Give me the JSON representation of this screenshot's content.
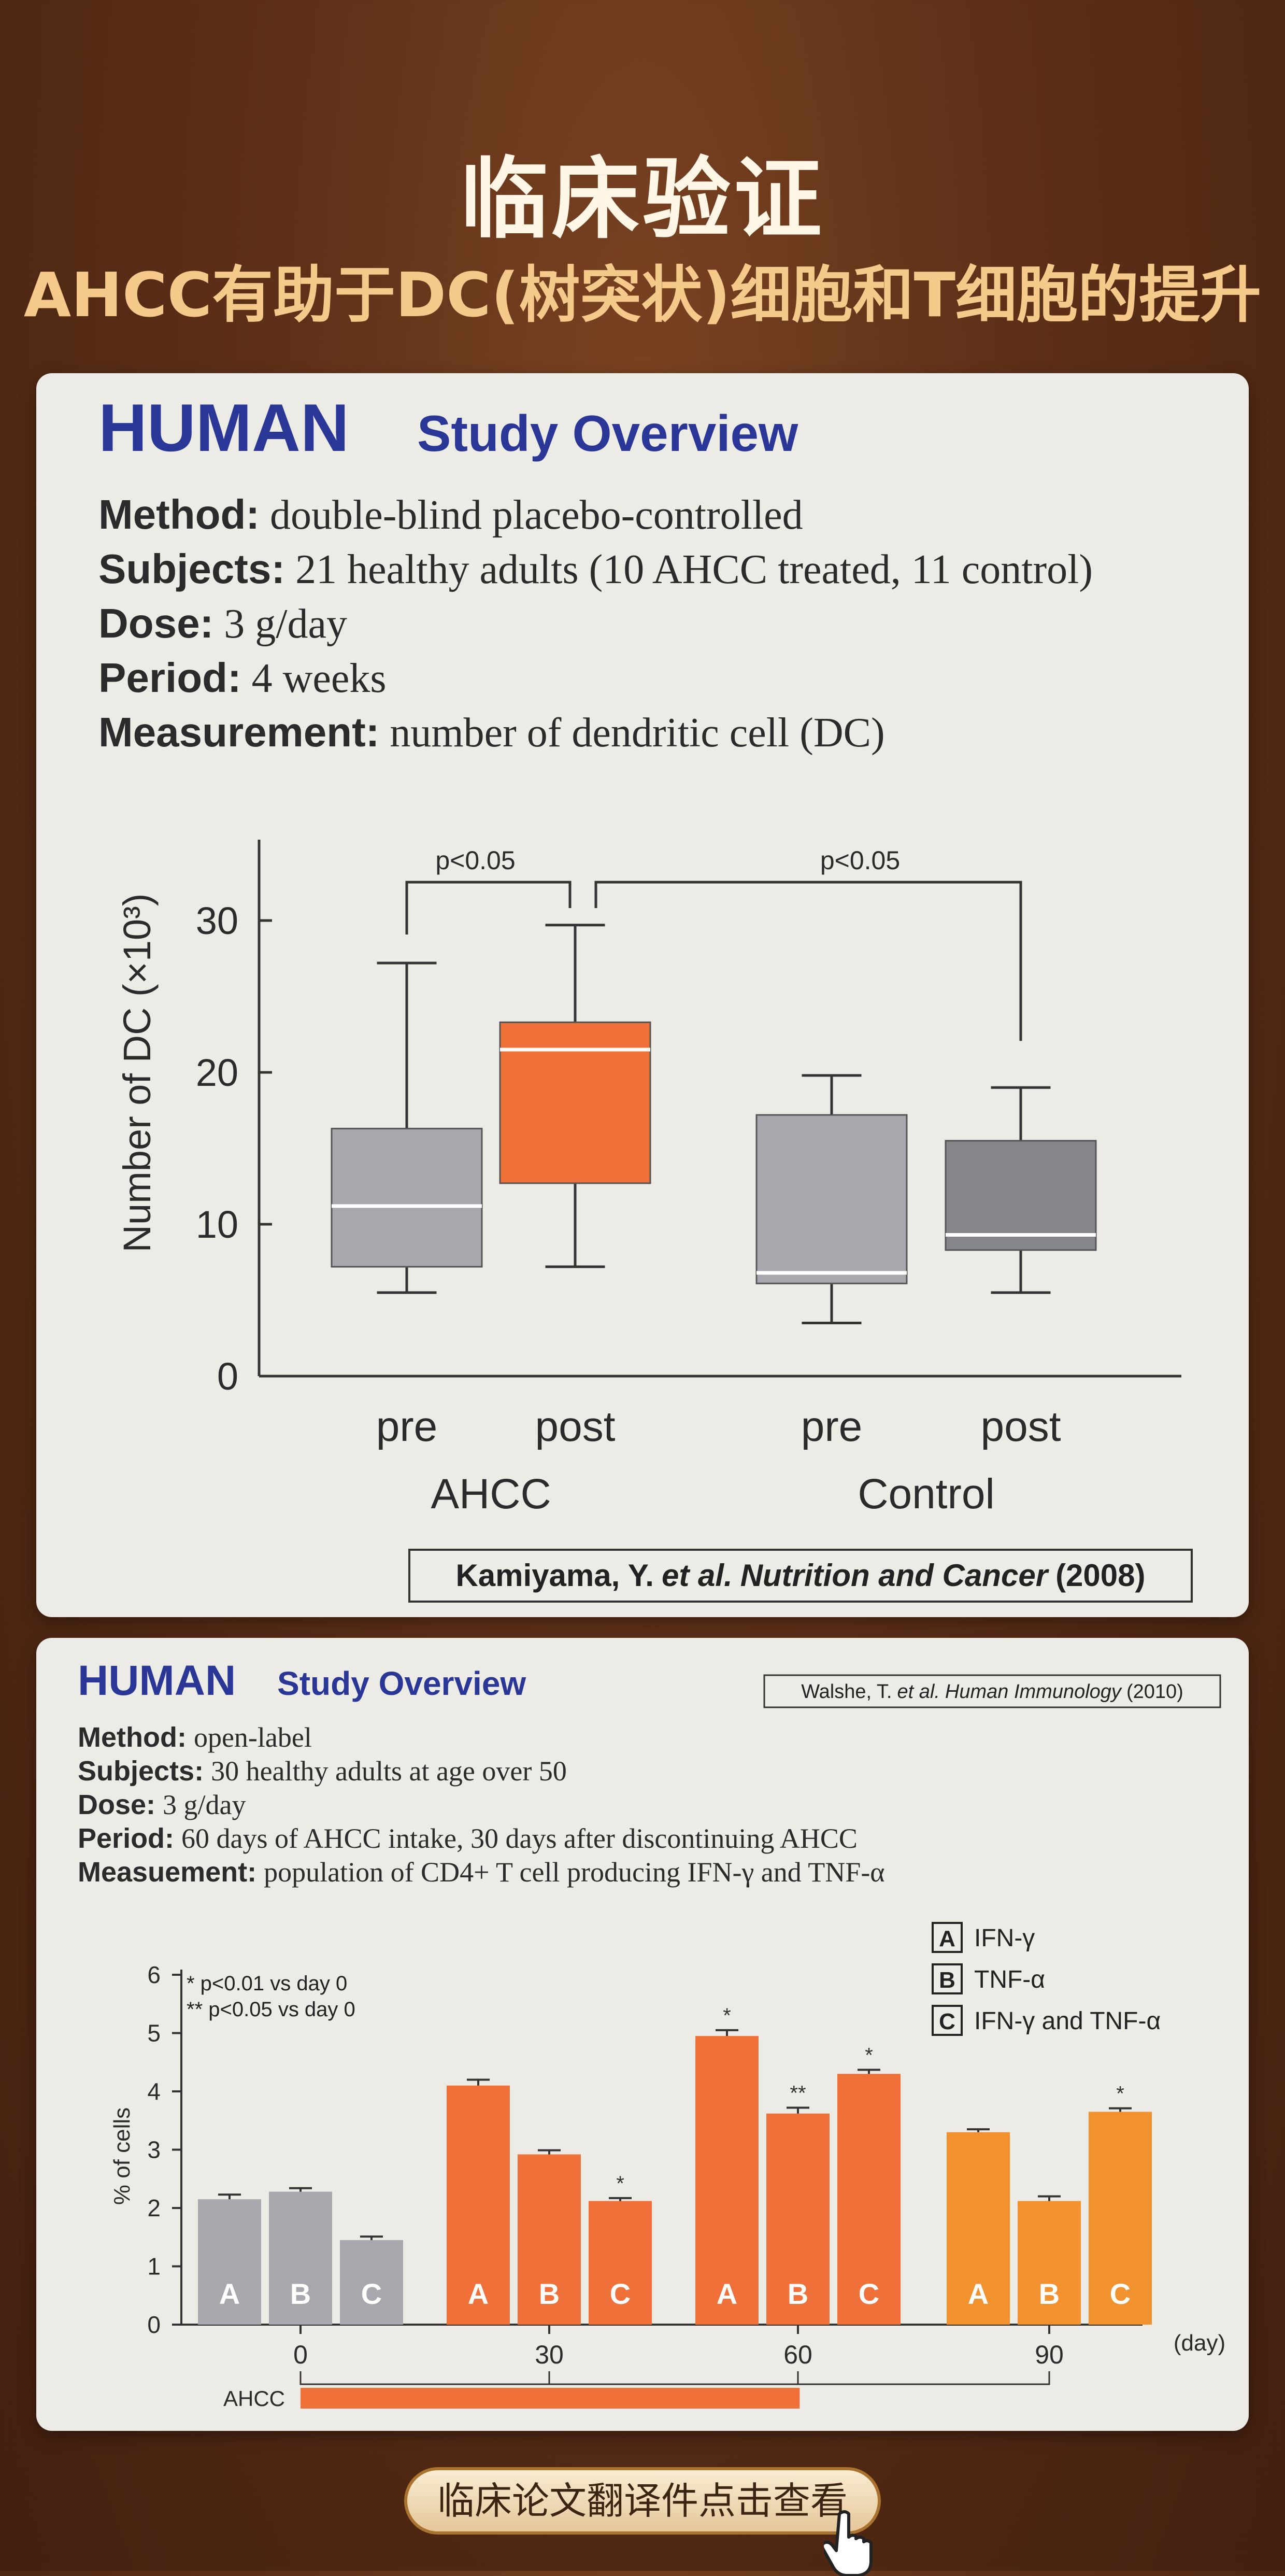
{
  "header": {
    "title": "临床验证",
    "subtitle": "AHCC有助于DC(树突状)细胞和T细胞的提升"
  },
  "study1": {
    "heading_big": "HUMAN",
    "heading_rest": "Study Overview",
    "method_label": "Method:",
    "method_value": "double-blind placebo-controlled",
    "subjects_label": "Subjects:",
    "subjects_value": "21 healthy adults (10 AHCC treated, 11 control)",
    "dose_label": "Dose:",
    "dose_value": "3 g/day",
    "period_label": "Period:",
    "period_value": "4 weeks",
    "measurement_label": "Measurement:",
    "measurement_value": "number of dendritic cell (DC)",
    "citation_author": "Kamiyama, Y.",
    "citation_etal": "et al.",
    "citation_journal": "Nutrition and Cancer",
    "citation_year": "(2008)",
    "sig1": "p<0.05",
    "sig2": "p<0.05"
  },
  "study2": {
    "heading_big": "HUMAN",
    "heading_rest": "Study Overview",
    "citation_author": "Walshe, T.",
    "citation_etal": "et al.",
    "citation_journal": "Human Immunology",
    "citation_year": "(2010)",
    "method_label": "Method:",
    "method_value": "open-label",
    "subjects_label": "Subjects:",
    "subjects_value": "30 healthy adults at age over 50",
    "dose_label": "Dose:",
    "dose_value": "3 g/day",
    "period_label": "Period:",
    "period_value": "60 days of AHCC intake, 30 days after discontinuing AHCC",
    "measurement_label": "Measuement:",
    "measurement_value": "population of CD4+ T cell producing IFN-γ and TNF-α",
    "note1": "* p<0.01 vs day 0",
    "note2": "** p<0.05 vs day 0",
    "legend": [
      {
        "key": "A",
        "label": "IFN-γ"
      },
      {
        "key": "B",
        "label": "TNF-α"
      },
      {
        "key": "C",
        "label": "IFN-γ and TNF-α"
      }
    ],
    "ahcc_bar_label": "AHCC"
  },
  "cta": {
    "label": "临床论文翻译件点击查看"
  },
  "colors": {
    "gray": "#a7a7ad",
    "orange": "#f0703a",
    "light_orange": "#f2922e",
    "navy": "#2a3796",
    "dark_gray": "#85858c"
  },
  "chart_data": [
    {
      "type": "box",
      "title": "",
      "ylabel": "Number of DC (×10³)",
      "ylim": [
        0,
        35
      ],
      "yticks": [
        0,
        10,
        20,
        30
      ],
      "categories": [
        "pre",
        "post",
        "pre",
        "post"
      ],
      "groups": [
        "AHCC",
        "Control"
      ],
      "boxes": [
        {
          "group": "AHCC",
          "label": "pre",
          "min": 5.5,
          "q1": 7.2,
          "median": 11.2,
          "q3": 16.3,
          "max": 27.2
        },
        {
          "group": "AHCC",
          "label": "post",
          "min": 7.2,
          "q1": 12.7,
          "median": 21.5,
          "q3": 23.3,
          "max": 29.7
        },
        {
          "group": "Control",
          "label": "pre",
          "min": 3.5,
          "q1": 6.1,
          "median": 6.8,
          "q3": 17.2,
          "max": 19.8
        },
        {
          "group": "Control",
          "label": "post",
          "min": 5.5,
          "q1": 8.3,
          "median": 9.3,
          "q3": 15.5,
          "max": 19.0
        }
      ],
      "annotations": [
        "p<0.05",
        "p<0.05"
      ]
    },
    {
      "type": "bar",
      "title": "",
      "xlabel": "(day)",
      "ylabel": "% of cells",
      "ylim": [
        0,
        6
      ],
      "yticks": [
        0,
        1,
        2,
        3,
        4,
        5,
        6
      ],
      "x": [
        "0",
        "30",
        "60",
        "90"
      ],
      "series": [
        {
          "name": "IFN-γ",
          "key": "A",
          "values": [
            2.15,
            4.1,
            4.95,
            3.3
          ],
          "errors": [
            0.08,
            0.1,
            0.1,
            0.05
          ],
          "sig": [
            "",
            "",
            "*",
            ""
          ]
        },
        {
          "name": "TNF-α",
          "key": "B",
          "values": [
            2.28,
            2.92,
            3.62,
            2.12
          ],
          "errors": [
            0.06,
            0.07,
            0.1,
            0.08
          ],
          "sig": [
            "",
            "",
            "**",
            ""
          ]
        },
        {
          "name": "IFN-γ and TNF-α",
          "key": "C",
          "values": [
            1.45,
            2.12,
            4.3,
            3.65
          ],
          "errors": [
            0.06,
            0.05,
            0.07,
            0.06
          ],
          "sig": [
            "",
            "*",
            "*",
            "*"
          ]
        }
      ],
      "ahcc_period_days": [
        0,
        60
      ],
      "legend_position": "top-right"
    }
  ]
}
